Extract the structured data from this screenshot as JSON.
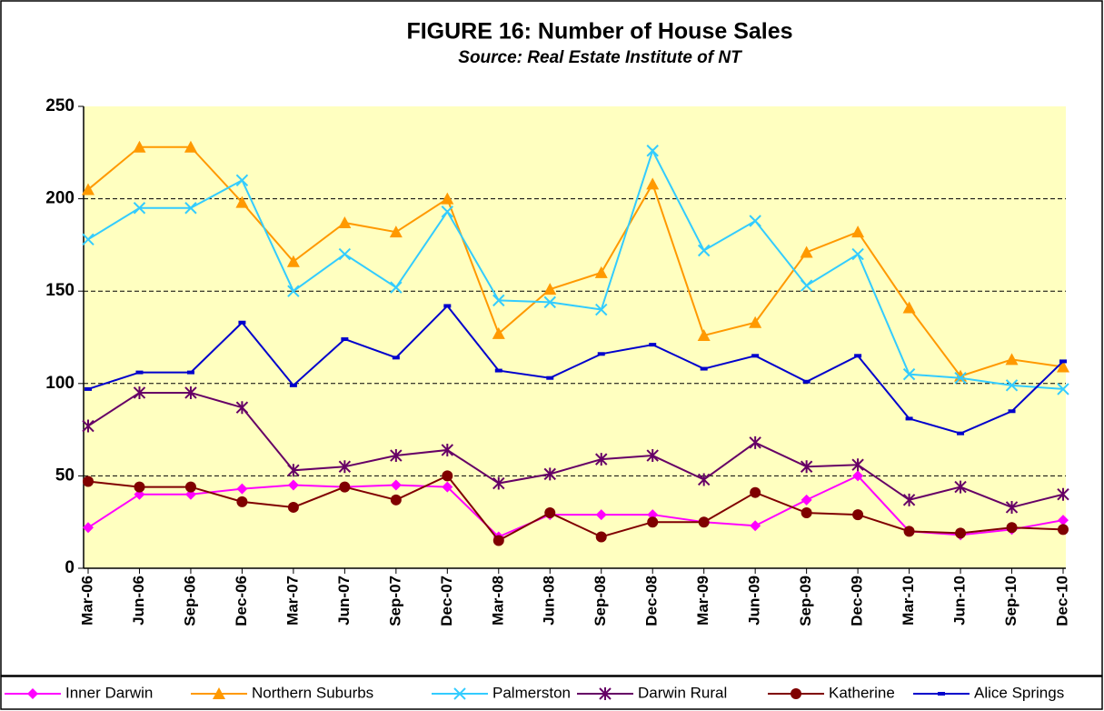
{
  "chart_data": {
    "type": "line",
    "title": "FIGURE 16: Number of House Sales",
    "subtitle": "Source: Real Estate Institute of NT",
    "categories": [
      "Mar-06",
      "Jun-06",
      "Sep-06",
      "Dec-06",
      "Mar-07",
      "Jun-07",
      "Sep-07",
      "Dec-07",
      "Mar-08",
      "Jun-08",
      "Sep-08",
      "Dec-08",
      "Mar-09",
      "Jun-09",
      "Sep-09",
      "Dec-09",
      "Mar-10",
      "Jun-10",
      "Sep-10",
      "Dec-10"
    ],
    "series": [
      {
        "name": "Inner Darwin",
        "color": "#ff00ff",
        "marker": "diamond",
        "values": [
          22,
          40,
          40,
          43,
          45,
          44,
          45,
          44,
          17,
          29,
          29,
          29,
          25,
          23,
          37,
          50,
          20,
          18,
          21,
          26
        ]
      },
      {
        "name": "Northern Suburbs",
        "color": "#ff9900",
        "marker": "triangle",
        "values": [
          205,
          228,
          228,
          198,
          166,
          187,
          182,
          200,
          127,
          151,
          160,
          208,
          126,
          133,
          171,
          182,
          141,
          104,
          113,
          109
        ]
      },
      {
        "name": "Palmerston",
        "color": "#33ccff",
        "marker": "x",
        "values": [
          178,
          195,
          195,
          210,
          150,
          170,
          152,
          193,
          145,
          144,
          140,
          226,
          172,
          188,
          153,
          170,
          105,
          103,
          99,
          97
        ]
      },
      {
        "name": "Darwin Rural",
        "color": "#660066",
        "marker": "star",
        "values": [
          77,
          95,
          95,
          87,
          53,
          55,
          61,
          64,
          46,
          51,
          59,
          61,
          48,
          68,
          55,
          56,
          37,
          44,
          33,
          40
        ]
      },
      {
        "name": "Katherine",
        "color": "#800000",
        "marker": "circle",
        "values": [
          47,
          44,
          44,
          36,
          33,
          44,
          37,
          50,
          15,
          30,
          17,
          25,
          25,
          41,
          30,
          29,
          20,
          19,
          22,
          21
        ]
      },
      {
        "name": "Alice Springs",
        "color": "#0000cc",
        "marker": "dash",
        "values": [
          97,
          106,
          106,
          133,
          99,
          124,
          114,
          142,
          107,
          103,
          116,
          121,
          108,
          115,
          101,
          115,
          81,
          73,
          85,
          112
        ]
      }
    ],
    "ylim": [
      0,
      250
    ],
    "yticks": [
      0,
      50,
      100,
      150,
      200,
      250
    ],
    "grid": true,
    "legend": "bottom"
  }
}
